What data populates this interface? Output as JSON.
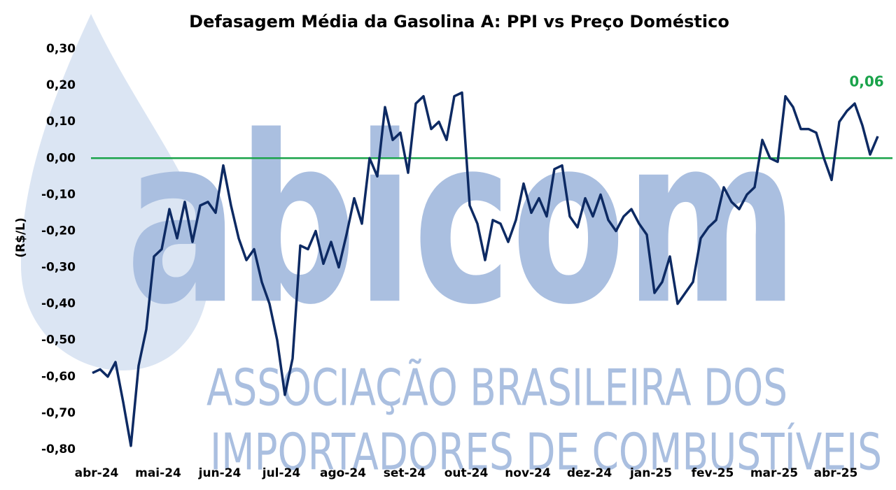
{
  "chart_data": {
    "type": "line",
    "title": "Defasagem Média da Gasolina A: PPI vs Preço Doméstico",
    "y_label": "(R$/L)",
    "categories": [
      "abr-24",
      null,
      null,
      null,
      null,
      null,
      null,
      null,
      "mai-24",
      null,
      null,
      null,
      null,
      null,
      null,
      null,
      "jun-24",
      null,
      null,
      null,
      null,
      null,
      null,
      null,
      "jul-24",
      null,
      null,
      null,
      null,
      null,
      null,
      null,
      "ago-24",
      null,
      null,
      null,
      null,
      null,
      null,
      null,
      "set-24",
      null,
      null,
      null,
      null,
      null,
      null,
      null,
      "out-24",
      null,
      null,
      null,
      null,
      null,
      null,
      null,
      "nov-24",
      null,
      null,
      null,
      null,
      null,
      null,
      null,
      "dez-24",
      null,
      null,
      null,
      null,
      null,
      null,
      null,
      "jan-25",
      null,
      null,
      null,
      null,
      null,
      null,
      null,
      "fev-25",
      null,
      null,
      null,
      null,
      null,
      null,
      null,
      "mar-25",
      null,
      null,
      null,
      null,
      null,
      null,
      null,
      "abr-25",
      null,
      null,
      null,
      null,
      null,
      null
    ],
    "series": [
      {
        "color": "#0d2a63",
        "values": [
          -0.59,
          -0.58,
          -0.6,
          -0.56,
          -0.67,
          -0.79,
          -0.57,
          -0.47,
          -0.27,
          -0.25,
          -0.14,
          -0.22,
          -0.12,
          -0.23,
          -0.13,
          -0.12,
          -0.15,
          -0.02,
          -0.13,
          -0.22,
          -0.28,
          -0.25,
          -0.34,
          -0.4,
          -0.5,
          -0.65,
          -0.55,
          -0.24,
          -0.25,
          -0.2,
          -0.29,
          -0.23,
          -0.3,
          -0.21,
          -0.11,
          -0.18,
          0.0,
          -0.05,
          0.14,
          0.05,
          0.07,
          -0.04,
          0.15,
          0.17,
          0.08,
          0.1,
          0.05,
          0.17,
          0.18,
          -0.13,
          -0.18,
          -0.28,
          -0.17,
          -0.18,
          -0.23,
          -0.17,
          -0.07,
          -0.15,
          -0.11,
          -0.16,
          -0.03,
          -0.02,
          -0.16,
          -0.19,
          -0.11,
          -0.16,
          -0.1,
          -0.17,
          -0.2,
          -0.16,
          -0.14,
          -0.18,
          -0.21,
          -0.37,
          -0.34,
          -0.27,
          -0.4,
          -0.37,
          -0.34,
          -0.22,
          -0.19,
          -0.17,
          -0.08,
          -0.12,
          -0.14,
          -0.1,
          -0.08,
          0.05,
          0.0,
          -0.01,
          0.17,
          0.14,
          0.08,
          0.08,
          0.07,
          0.0,
          -0.06,
          0.1,
          0.13,
          0.15,
          0.09,
          0.01,
          0.06
        ]
      }
    ],
    "annotation": {
      "text": "0,06",
      "color": "#1aa34a"
    },
    "hline": 0,
    "hline_color": "#1aa34a",
    "ylim": [
      -0.8,
      0.3
    ],
    "yticks": [
      {
        "value": 0.3,
        "label": "0,30"
      },
      {
        "value": 0.2,
        "label": "0,20"
      },
      {
        "value": 0.1,
        "label": "0,10"
      },
      {
        "value": 0,
        "label": "0,00"
      },
      {
        "value": -0.1,
        "label": "-0,10"
      },
      {
        "value": -0.2,
        "label": "-0,20"
      },
      {
        "value": -0.3,
        "label": "-0,30"
      },
      {
        "value": -0.4,
        "label": "-0,40"
      },
      {
        "value": -0.5,
        "label": "-0,50"
      },
      {
        "value": -0.6,
        "label": "-0,60"
      },
      {
        "value": -0.7,
        "label": "-0,70"
      },
      {
        "value": -0.8,
        "label": "-0,80"
      }
    ],
    "grid": false,
    "watermark": {
      "logo": "abicom",
      "lines": [
        "ASSOCIAÇÃO BRASILEIRA DOS",
        "IMPORTADORES DE COMBUSTÍVEIS"
      ]
    }
  }
}
